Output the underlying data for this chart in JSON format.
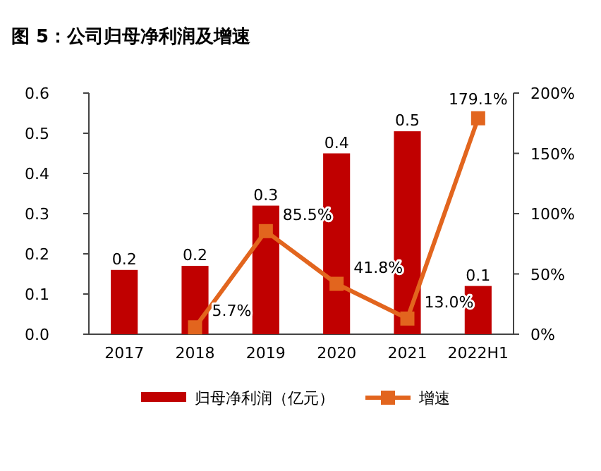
{
  "chart_data": {
    "type": "bar",
    "title": "图 5：公司归母净利润及增速",
    "categories": [
      "2017",
      "2018",
      "2019",
      "2020",
      "2021",
      "2022H1"
    ],
    "series": [
      {
        "name": "归母净利润（亿元）",
        "color": "#c00000",
        "values": [
          0.16,
          0.17,
          0.32,
          0.45,
          0.505,
          0.12
        ],
        "value_labels": [
          "0.2",
          "0.2",
          "0.3",
          "0.4",
          "0.5",
          "0.1"
        ]
      },
      {
        "name": "增速",
        "type": "line",
        "axis": "y2",
        "color": "#e2651e",
        "marker": "square",
        "values": [
          null,
          5.7,
          85.5,
          41.8,
          13.0,
          179.1
        ],
        "value_labels": [
          null,
          "5.7%",
          "85.5%",
          "41.8%",
          "13.0%",
          "179.1%"
        ]
      }
    ],
    "ylim": [
      0,
      0.6
    ],
    "yticks": [
      {
        "value": 0,
        "label": "0.0"
      },
      0.1,
      0.2,
      0.3,
      0.4,
      0.5,
      0.6
    ],
    "y2lim": [
      0,
      200
    ],
    "y2ticks": [
      {
        "value": 0,
        "label": "0%"
      },
      {
        "value": 50,
        "label": "50%"
      },
      {
        "value": 100,
        "label": "100%"
      },
      {
        "value": 150,
        "label": "150%"
      },
      {
        "value": 200,
        "label": "200%"
      }
    ],
    "grid": false,
    "legend": "bottom"
  }
}
